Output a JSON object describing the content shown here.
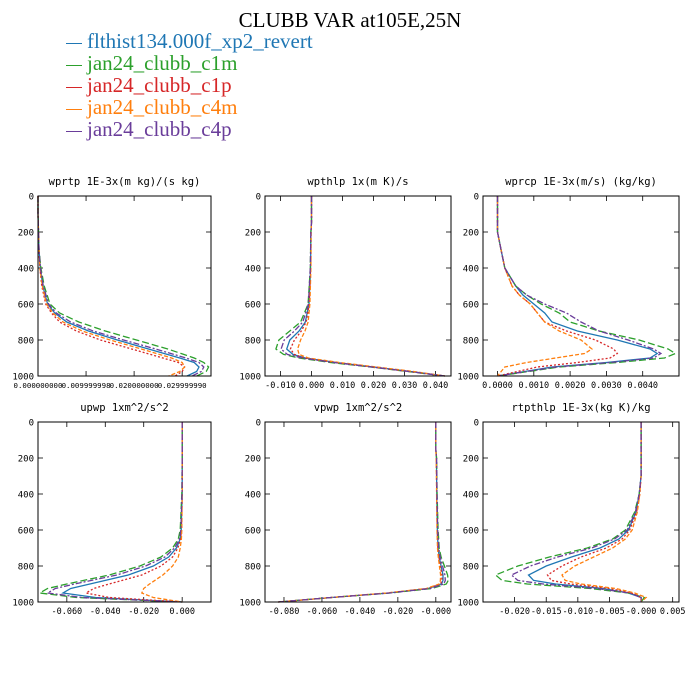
{
  "title": "CLUBB VAR at105E,25N",
  "legend": [
    {
      "name": "flthist134.000f_xp2_revert",
      "color": "#1f77b4"
    },
    {
      "name": "jan24_clubb_c1m",
      "color": "#2ca02c"
    },
    {
      "name": "jan24_clubb_c1p",
      "color": "#d62728"
    },
    {
      "name": "jan24_clubb_c4m",
      "color": "#ff7f0e"
    },
    {
      "name": "jan24_clubb_c4p",
      "color": "#6a3d9a"
    }
  ],
  "chart_data": [
    {
      "type": "line",
      "title": "wprtp  1E-3x(m kg)/(s kg)",
      "xlim": [
        0,
        0.036
      ],
      "ylim": [
        1000,
        0
      ],
      "xticks": [
        0,
        0.01,
        0.02,
        0.03
      ],
      "xtick_labels": [
        "0.000000000",
        "0.009999998",
        "0.020000000",
        "0.029999990"
      ],
      "yticks": [
        0,
        200,
        400,
        600,
        800,
        1000
      ],
      "y": [
        0,
        100,
        200,
        300,
        400,
        500,
        600,
        650,
        700,
        750,
        800,
        850,
        900,
        925,
        950,
        975,
        1000
      ],
      "series": [
        {
          "values": [
            0,
            0,
            0.0001,
            0.0002,
            0.0005,
            0.001,
            0.002,
            0.0035,
            0.006,
            0.0105,
            0.0165,
            0.023,
            0.0295,
            0.0325,
            0.0335,
            0.033,
            0.031
          ],
          "color": "#1f77b4"
        },
        {
          "values": [
            0,
            0,
            0.0001,
            0.0002,
            0.0006,
            0.0013,
            0.0025,
            0.0045,
            0.0085,
            0.014,
            0.0205,
            0.027,
            0.0325,
            0.0345,
            0.0355,
            0.035,
            0.033
          ],
          "color": "#2ca02c"
        },
        {
          "values": [
            0,
            0,
            0.0001,
            0.0002,
            0.0004,
            0.0008,
            0.0016,
            0.0028,
            0.0045,
            0.008,
            0.013,
            0.0195,
            0.026,
            0.0292,
            0.0305,
            0.03,
            0.0285
          ],
          "color": "#d62728"
        },
        {
          "values": [
            0,
            0,
            0.0001,
            0.0002,
            0.0004,
            0.0009,
            0.0018,
            0.0031,
            0.0052,
            0.0092,
            0.015,
            0.0215,
            0.0278,
            0.03,
            0.0305,
            0.0295,
            0.0272
          ],
          "color": "#ff7f0e"
        },
        {
          "values": [
            0,
            0,
            0.0001,
            0.0002,
            0.0005,
            0.0011,
            0.0022,
            0.0038,
            0.0068,
            0.0115,
            0.0178,
            0.0245,
            0.0308,
            0.0335,
            0.0345,
            0.034,
            0.032
          ],
          "color": "#6a3d9a"
        }
      ]
    },
    {
      "type": "line",
      "title": "wpthlp  1x(m K)/s",
      "xlim": [
        -0.015,
        0.045
      ],
      "ylim": [
        1000,
        0
      ],
      "xticks": [
        -0.01,
        0,
        0.01,
        0.02,
        0.03,
        0.04
      ],
      "xtick_labels": [
        "-0.010",
        "0.000",
        "0.010",
        "0.020",
        "0.030",
        "0.040"
      ],
      "yticks": [
        0,
        200,
        400,
        600,
        800,
        1000
      ],
      "y": [
        0,
        150,
        200,
        400,
        600,
        700,
        750,
        800,
        850,
        880,
        900,
        925,
        950,
        975,
        1000
      ],
      "series": [
        {
          "values": [
            0,
            0,
            -0.0002,
            -0.0003,
            -0.0008,
            -0.002,
            -0.004,
            -0.007,
            -0.008,
            -0.006,
            -0.002,
            0.008,
            0.02,
            0.032,
            0.043
          ],
          "color": "#1f77b4"
        },
        {
          "values": [
            0,
            0,
            -0.0002,
            -0.0004,
            -0.0011,
            -0.0035,
            -0.007,
            -0.0105,
            -0.0115,
            -0.009,
            -0.004,
            0.006,
            0.019,
            0.031,
            0.043
          ],
          "color": "#2ca02c"
        },
        {
          "values": [
            0,
            0,
            -0.0002,
            -0.0003,
            -0.0007,
            -0.0017,
            -0.0033,
            -0.0055,
            -0.0068,
            -0.0055,
            -0.0025,
            0.0075,
            0.0195,
            0.0315,
            0.043
          ],
          "color": "#d62728"
        },
        {
          "values": [
            0,
            0,
            -0.0001,
            -0.0002,
            -0.0005,
            -0.0011,
            -0.0021,
            -0.0035,
            -0.0045,
            -0.004,
            -0.001,
            0.009,
            0.021,
            0.033,
            0.043
          ],
          "color": "#ff7f0e"
        },
        {
          "values": [
            0,
            0,
            -0.0002,
            -0.0004,
            -0.001,
            -0.0028,
            -0.0055,
            -0.0088,
            -0.0098,
            -0.0078,
            -0.003,
            0.0072,
            0.0195,
            0.0315,
            0.043
          ],
          "color": "#6a3d9a"
        }
      ]
    },
    {
      "type": "line",
      "title": "wprcp  1E-3x(m/s) (kg/kg)",
      "xlim": [
        -0.0004,
        0.005
      ],
      "ylim": [
        1000,
        0
      ],
      "xticks": [
        0,
        0.001,
        0.002,
        0.003,
        0.004
      ],
      "xtick_labels": [
        "0.0000",
        "0.0010",
        "0.0020",
        "0.0030",
        "0.0040"
      ],
      "yticks": [
        0,
        200,
        400,
        600,
        800,
        1000
      ],
      "y": [
        0,
        200,
        300,
        400,
        500,
        550,
        600,
        650,
        700,
        750,
        800,
        850,
        875,
        900,
        925,
        950,
        1000
      ],
      "series": [
        {
          "values": [
            0,
            0,
            0.0001,
            0.0002,
            0.0005,
            0.0007,
            0.001,
            0.0013,
            0.0015,
            0.0022,
            0.0033,
            0.0042,
            0.0044,
            0.0042,
            0.003,
            0.0015,
            0
          ],
          "color": "#1f77b4"
        },
        {
          "values": [
            0,
            0,
            0.0001,
            0.0002,
            0.0005,
            0.0008,
            0.0012,
            0.0017,
            0.002,
            0.0028,
            0.0039,
            0.0047,
            0.0049,
            0.0046,
            0.0033,
            0.0017,
            0
          ],
          "color": "#2ca02c"
        },
        {
          "values": [
            0,
            0,
            0.0001,
            0.0002,
            0.0004,
            0.0006,
            0.0009,
            0.0011,
            0.0013,
            0.0019,
            0.0027,
            0.0032,
            0.0033,
            0.0031,
            0.0022,
            0.0011,
            0
          ],
          "color": "#d62728"
        },
        {
          "values": [
            0,
            0,
            0.0001,
            0.0002,
            0.0004,
            0.0006,
            0.0009,
            0.0011,
            0.0013,
            0.0017,
            0.0023,
            0.0026,
            0.0024,
            0.0016,
            0.0008,
            0.0002,
            0
          ],
          "color": "#ff7f0e"
        },
        {
          "values": [
            0,
            0,
            0.0001,
            0.0002,
            0.0005,
            0.0008,
            0.0013,
            0.0019,
            0.0023,
            0.0028,
            0.0036,
            0.0043,
            0.0045,
            0.0043,
            0.0031,
            0.0016,
            0
          ],
          "color": "#6a3d9a"
        }
      ]
    },
    {
      "type": "line",
      "title": "upwp  1xm^2/s^2",
      "xlim": [
        -0.075,
        0.015
      ],
      "ylim": [
        1000,
        0
      ],
      "xticks": [
        -0.06,
        -0.04,
        -0.02,
        0
      ],
      "xtick_labels": [
        "-0.060",
        "-0.040",
        "-0.020",
        "0.000"
      ],
      "yticks": [
        0,
        200,
        400,
        600,
        800,
        1000
      ],
      "y": [
        0,
        200,
        400,
        600,
        650,
        700,
        750,
        800,
        850,
        900,
        925,
        950,
        975,
        1000
      ],
      "series": [
        {
          "values": [
            0,
            0,
            0,
            -0.0005,
            -0.001,
            -0.003,
            -0.007,
            -0.015,
            -0.028,
            -0.048,
            -0.058,
            -0.062,
            -0.045,
            0
          ],
          "color": "#1f77b4"
        },
        {
          "values": [
            0,
            0,
            -0.0002,
            -0.001,
            -0.002,
            -0.005,
            -0.011,
            -0.022,
            -0.038,
            -0.06,
            -0.07,
            -0.074,
            -0.055,
            0
          ],
          "color": "#2ca02c"
        },
        {
          "values": [
            0,
            0,
            0,
            -0.0004,
            -0.0008,
            -0.0022,
            -0.005,
            -0.011,
            -0.021,
            -0.038,
            -0.046,
            -0.05,
            -0.038,
            0
          ],
          "color": "#d62728"
        },
        {
          "values": [
            0,
            0,
            0,
            -0.0002,
            -0.0004,
            -0.001,
            -0.002,
            -0.005,
            -0.01,
            -0.017,
            -0.02,
            -0.021,
            -0.015,
            0
          ],
          "color": "#ff7f0e"
        },
        {
          "values": [
            0,
            0,
            -0.0001,
            -0.0007,
            -0.0014,
            -0.004,
            -0.009,
            -0.019,
            -0.034,
            -0.056,
            -0.066,
            -0.07,
            -0.052,
            0
          ],
          "color": "#6a3d9a"
        }
      ]
    },
    {
      "type": "line",
      "title": "vpwp  1xm^2/s^2",
      "xlim": [
        -0.09,
        0.008
      ],
      "ylim": [
        1000,
        0
      ],
      "xticks": [
        -0.08,
        -0.06,
        -0.04,
        -0.02,
        0
      ],
      "xtick_labels": [
        "-0.080",
        "-0.060",
        "-0.040",
        "-0.020",
        "-0.000"
      ],
      "yticks": [
        0,
        200,
        400,
        600,
        800,
        1000
      ],
      "y": [
        0,
        150,
        200,
        400,
        600,
        700,
        750,
        800,
        850,
        880,
        900,
        925,
        950,
        975,
        1000
      ],
      "series": [
        {
          "values": [
            0,
            0,
            0.0003,
            0.0005,
            0.0008,
            0.0012,
            0.0018,
            0.0028,
            0.0038,
            0.0038,
            0.003,
            -0.004,
            -0.025,
            -0.055,
            -0.083
          ],
          "color": "#1f77b4"
        },
        {
          "values": [
            0,
            0,
            0.0004,
            0.0007,
            0.0012,
            0.0018,
            0.0028,
            0.0045,
            0.0062,
            0.0065,
            0.0055,
            -0.002,
            -0.024,
            -0.055,
            -0.083
          ],
          "color": "#2ca02c"
        },
        {
          "values": [
            0,
            0,
            0.0003,
            0.0005,
            0.0008,
            0.0011,
            0.0016,
            0.0024,
            0.0032,
            0.0032,
            0.0025,
            -0.0045,
            -0.0255,
            -0.055,
            -0.083
          ],
          "color": "#d62728"
        },
        {
          "values": [
            0,
            0,
            0.0002,
            0.0004,
            0.0006,
            0.0009,
            0.0013,
            0.0019,
            0.0025,
            0.0024,
            0.0018,
            -0.005,
            -0.026,
            -0.055,
            -0.083
          ],
          "color": "#ff7f0e"
        },
        {
          "values": [
            0,
            0,
            0.0004,
            0.0006,
            0.001,
            0.0015,
            0.0023,
            0.0036,
            0.0048,
            0.005,
            0.0042,
            -0.003,
            -0.0245,
            -0.055,
            -0.083
          ],
          "color": "#6a3d9a"
        }
      ]
    },
    {
      "type": "line",
      "title": "rtpthlp  1E-3x(kg K)/kg",
      "xlim": [
        -0.025,
        0.006
      ],
      "ylim": [
        1000,
        0
      ],
      "xticks": [
        -0.02,
        -0.015,
        -0.01,
        -0.005,
        0,
        0.005
      ],
      "xtick_labels": [
        "-0.020",
        "-0.015",
        "-0.010",
        "-0.005",
        "-0.000",
        "0.005"
      ],
      "yticks": [
        0,
        200,
        400,
        600,
        800,
        1000
      ],
      "y": [
        0,
        300,
        400,
        500,
        600,
        650,
        700,
        750,
        800,
        850,
        880,
        900,
        925,
        950,
        975,
        1000
      ],
      "series": [
        {
          "values": [
            0,
            0,
            -0.0003,
            -0.0008,
            -0.002,
            -0.0035,
            -0.0065,
            -0.011,
            -0.015,
            -0.0178,
            -0.017,
            -0.0135,
            -0.006,
            -0.002,
            0,
            0
          ],
          "color": "#1f77b4"
        },
        {
          "values": [
            0,
            0,
            -0.0003,
            -0.001,
            -0.0025,
            -0.0045,
            -0.0085,
            -0.0145,
            -0.0195,
            -0.023,
            -0.022,
            -0.018,
            -0.008,
            -0.002,
            0.0005,
            0
          ],
          "color": "#2ca02c"
        },
        {
          "values": [
            0,
            0,
            -0.0002,
            -0.0007,
            -0.0018,
            -0.003,
            -0.0055,
            -0.0095,
            -0.0125,
            -0.0148,
            -0.0142,
            -0.0112,
            -0.005,
            -0.0015,
            0,
            0
          ],
          "color": "#d62728"
        },
        {
          "values": [
            0,
            0,
            -0.0002,
            -0.0006,
            -0.0014,
            -0.0025,
            -0.0045,
            -0.0075,
            -0.0105,
            -0.0125,
            -0.012,
            -0.0095,
            -0.004,
            -0.001,
            0.0008,
            0
          ],
          "color": "#ff7f0e"
        },
        {
          "values": [
            0,
            0,
            -0.0003,
            -0.0009,
            -0.0022,
            -0.0042,
            -0.0078,
            -0.0132,
            -0.0175,
            -0.0205,
            -0.0195,
            -0.0155,
            -0.007,
            -0.0018,
            0,
            0
          ],
          "color": "#6a3d9a"
        }
      ]
    }
  ]
}
